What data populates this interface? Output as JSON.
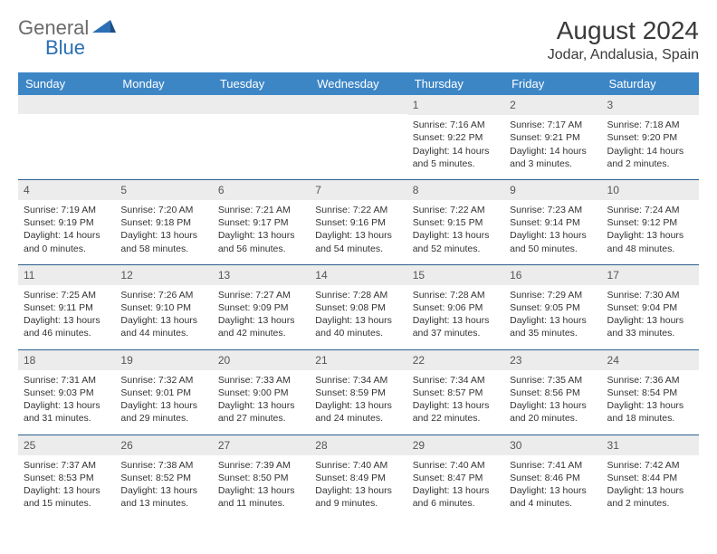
{
  "logo": {
    "text1": "General",
    "text2": "Blue"
  },
  "title": "August 2024",
  "subtitle": "Jodar, Andalusia, Spain",
  "day_names": [
    "Sunday",
    "Monday",
    "Tuesday",
    "Wednesday",
    "Thursday",
    "Friday",
    "Saturday"
  ],
  "colors": {
    "header_bg": "#3d86c6",
    "header_text": "#ffffff",
    "daynum_bg": "#ececec",
    "row_border": "#2b5f8f",
    "logo_gray": "#6b6b6b",
    "logo_blue": "#2b6fb5"
  },
  "weeks": [
    [
      {
        "n": "",
        "sr": "",
        "ss": "",
        "dl": ""
      },
      {
        "n": "",
        "sr": "",
        "ss": "",
        "dl": ""
      },
      {
        "n": "",
        "sr": "",
        "ss": "",
        "dl": ""
      },
      {
        "n": "",
        "sr": "",
        "ss": "",
        "dl": ""
      },
      {
        "n": "1",
        "sr": "Sunrise: 7:16 AM",
        "ss": "Sunset: 9:22 PM",
        "dl": "Daylight: 14 hours and 5 minutes."
      },
      {
        "n": "2",
        "sr": "Sunrise: 7:17 AM",
        "ss": "Sunset: 9:21 PM",
        "dl": "Daylight: 14 hours and 3 minutes."
      },
      {
        "n": "3",
        "sr": "Sunrise: 7:18 AM",
        "ss": "Sunset: 9:20 PM",
        "dl": "Daylight: 14 hours and 2 minutes."
      }
    ],
    [
      {
        "n": "4",
        "sr": "Sunrise: 7:19 AM",
        "ss": "Sunset: 9:19 PM",
        "dl": "Daylight: 14 hours and 0 minutes."
      },
      {
        "n": "5",
        "sr": "Sunrise: 7:20 AM",
        "ss": "Sunset: 9:18 PM",
        "dl": "Daylight: 13 hours and 58 minutes."
      },
      {
        "n": "6",
        "sr": "Sunrise: 7:21 AM",
        "ss": "Sunset: 9:17 PM",
        "dl": "Daylight: 13 hours and 56 minutes."
      },
      {
        "n": "7",
        "sr": "Sunrise: 7:22 AM",
        "ss": "Sunset: 9:16 PM",
        "dl": "Daylight: 13 hours and 54 minutes."
      },
      {
        "n": "8",
        "sr": "Sunrise: 7:22 AM",
        "ss": "Sunset: 9:15 PM",
        "dl": "Daylight: 13 hours and 52 minutes."
      },
      {
        "n": "9",
        "sr": "Sunrise: 7:23 AM",
        "ss": "Sunset: 9:14 PM",
        "dl": "Daylight: 13 hours and 50 minutes."
      },
      {
        "n": "10",
        "sr": "Sunrise: 7:24 AM",
        "ss": "Sunset: 9:12 PM",
        "dl": "Daylight: 13 hours and 48 minutes."
      }
    ],
    [
      {
        "n": "11",
        "sr": "Sunrise: 7:25 AM",
        "ss": "Sunset: 9:11 PM",
        "dl": "Daylight: 13 hours and 46 minutes."
      },
      {
        "n": "12",
        "sr": "Sunrise: 7:26 AM",
        "ss": "Sunset: 9:10 PM",
        "dl": "Daylight: 13 hours and 44 minutes."
      },
      {
        "n": "13",
        "sr": "Sunrise: 7:27 AM",
        "ss": "Sunset: 9:09 PM",
        "dl": "Daylight: 13 hours and 42 minutes."
      },
      {
        "n": "14",
        "sr": "Sunrise: 7:28 AM",
        "ss": "Sunset: 9:08 PM",
        "dl": "Daylight: 13 hours and 40 minutes."
      },
      {
        "n": "15",
        "sr": "Sunrise: 7:28 AM",
        "ss": "Sunset: 9:06 PM",
        "dl": "Daylight: 13 hours and 37 minutes."
      },
      {
        "n": "16",
        "sr": "Sunrise: 7:29 AM",
        "ss": "Sunset: 9:05 PM",
        "dl": "Daylight: 13 hours and 35 minutes."
      },
      {
        "n": "17",
        "sr": "Sunrise: 7:30 AM",
        "ss": "Sunset: 9:04 PM",
        "dl": "Daylight: 13 hours and 33 minutes."
      }
    ],
    [
      {
        "n": "18",
        "sr": "Sunrise: 7:31 AM",
        "ss": "Sunset: 9:03 PM",
        "dl": "Daylight: 13 hours and 31 minutes."
      },
      {
        "n": "19",
        "sr": "Sunrise: 7:32 AM",
        "ss": "Sunset: 9:01 PM",
        "dl": "Daylight: 13 hours and 29 minutes."
      },
      {
        "n": "20",
        "sr": "Sunrise: 7:33 AM",
        "ss": "Sunset: 9:00 PM",
        "dl": "Daylight: 13 hours and 27 minutes."
      },
      {
        "n": "21",
        "sr": "Sunrise: 7:34 AM",
        "ss": "Sunset: 8:59 PM",
        "dl": "Daylight: 13 hours and 24 minutes."
      },
      {
        "n": "22",
        "sr": "Sunrise: 7:34 AM",
        "ss": "Sunset: 8:57 PM",
        "dl": "Daylight: 13 hours and 22 minutes."
      },
      {
        "n": "23",
        "sr": "Sunrise: 7:35 AM",
        "ss": "Sunset: 8:56 PM",
        "dl": "Daylight: 13 hours and 20 minutes."
      },
      {
        "n": "24",
        "sr": "Sunrise: 7:36 AM",
        "ss": "Sunset: 8:54 PM",
        "dl": "Daylight: 13 hours and 18 minutes."
      }
    ],
    [
      {
        "n": "25",
        "sr": "Sunrise: 7:37 AM",
        "ss": "Sunset: 8:53 PM",
        "dl": "Daylight: 13 hours and 15 minutes."
      },
      {
        "n": "26",
        "sr": "Sunrise: 7:38 AM",
        "ss": "Sunset: 8:52 PM",
        "dl": "Daylight: 13 hours and 13 minutes."
      },
      {
        "n": "27",
        "sr": "Sunrise: 7:39 AM",
        "ss": "Sunset: 8:50 PM",
        "dl": "Daylight: 13 hours and 11 minutes."
      },
      {
        "n": "28",
        "sr": "Sunrise: 7:40 AM",
        "ss": "Sunset: 8:49 PM",
        "dl": "Daylight: 13 hours and 9 minutes."
      },
      {
        "n": "29",
        "sr": "Sunrise: 7:40 AM",
        "ss": "Sunset: 8:47 PM",
        "dl": "Daylight: 13 hours and 6 minutes."
      },
      {
        "n": "30",
        "sr": "Sunrise: 7:41 AM",
        "ss": "Sunset: 8:46 PM",
        "dl": "Daylight: 13 hours and 4 minutes."
      },
      {
        "n": "31",
        "sr": "Sunrise: 7:42 AM",
        "ss": "Sunset: 8:44 PM",
        "dl": "Daylight: 13 hours and 2 minutes."
      }
    ]
  ]
}
